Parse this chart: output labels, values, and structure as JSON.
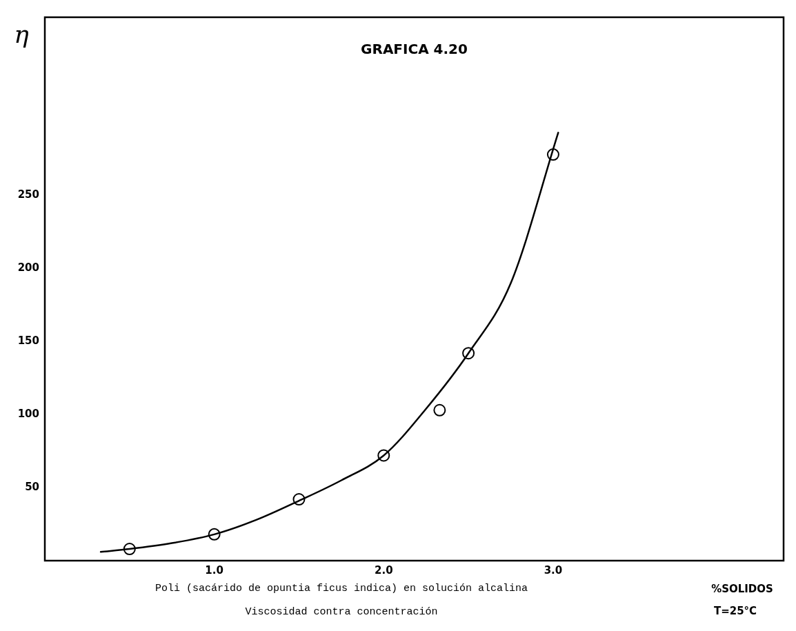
{
  "chart_data": {
    "type": "scatter",
    "title": "GRAFICA 4.20",
    "ylabel": "η",
    "xlabel": "%SOLIDOS",
    "annotations": [
      "Poli (sacárido de opuntia ficus indica) en solución alcalina",
      "Viscosidad contra concentración",
      "T=25°C"
    ],
    "xlim": [
      0,
      4.36
    ],
    "xticks": [
      {
        "value": 1,
        "label": "1.0"
      },
      {
        "value": 2,
        "label": "2.0"
      },
      {
        "value": 3,
        "label": "3.0"
      }
    ],
    "ylim": [
      0,
      372
    ],
    "yticks": [
      50,
      100,
      150,
      200,
      250
    ],
    "grid": false,
    "legend": false,
    "marker": "circle",
    "series": [
      {
        "color": "#000000",
        "x": [
          0.5,
          1.0,
          1.5,
          2.0,
          2.33,
          2.5,
          3.0
        ],
        "values": [
          8,
          18,
          42,
          72,
          103,
          142,
          278
        ]
      },
      {
        "type": "line",
        "color": "#000000",
        "marker": "none",
        "line_style": "solid",
        "x": [
          0.33,
          0.5,
          0.75,
          1.0,
          1.25,
          1.5,
          1.75,
          2.0,
          2.25,
          2.5,
          2.75,
          3.03
        ],
        "values": [
          6,
          8,
          12,
          18,
          28,
          41,
          55,
          72,
          104,
          142,
          190,
          293
        ]
      }
    ]
  }
}
